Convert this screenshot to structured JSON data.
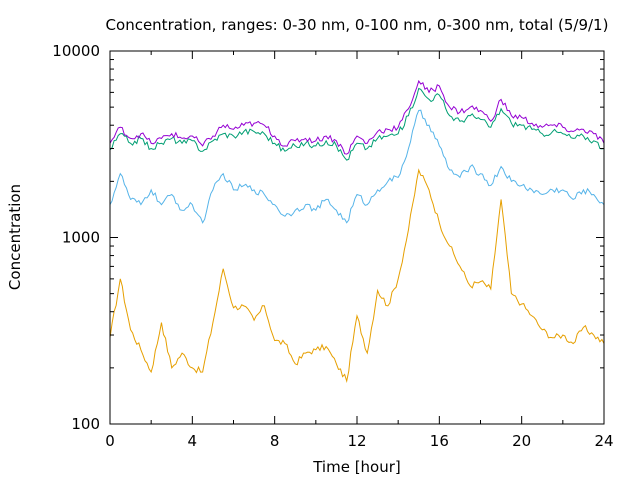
{
  "chart_data": {
    "type": "line",
    "title": "Concentration, ranges: 0-30 nm, 0-100 nm, 0-300 nm, total (5/9/1)",
    "xlabel": "Time [hour]",
    "ylabel": "Concentration",
    "xlim": [
      0,
      24
    ],
    "ylim": [
      100,
      10000
    ],
    "y_scale": "log",
    "grid": false,
    "legend": "none",
    "x_ticks": [
      0,
      4,
      8,
      12,
      16,
      20,
      24
    ],
    "x_tick_labels": [
      "0",
      "4",
      "8",
      "12",
      "16",
      "20",
      "24"
    ],
    "y_ticks": [
      100,
      1000,
      10000
    ],
    "y_tick_labels": [
      "100",
      "1000",
      "10000"
    ],
    "x": [
      0,
      0.5,
      1,
      1.5,
      2,
      2.5,
      3,
      3.5,
      4,
      4.5,
      5,
      5.5,
      6,
      6.5,
      7,
      7.5,
      8,
      8.5,
      9,
      9.5,
      10,
      10.5,
      11,
      11.5,
      12,
      12.5,
      13,
      13.5,
      14,
      14.5,
      15,
      15.5,
      16,
      16.5,
      17,
      17.5,
      18,
      18.5,
      19,
      19.5,
      20,
      20.5,
      21,
      21.5,
      22,
      22.5,
      23,
      23.5,
      24
    ],
    "series": [
      {
        "color": "#e69f00",
        "values": [
          290,
          600,
          320,
          250,
          190,
          350,
          200,
          240,
          200,
          190,
          350,
          680,
          420,
          430,
          360,
          430,
          280,
          270,
          210,
          240,
          250,
          260,
          210,
          170,
          380,
          240,
          520,
          430,
          600,
          1100,
          2300,
          1800,
          1200,
          900,
          700,
          550,
          580,
          530,
          1600,
          500,
          440,
          380,
          320,
          290,
          300,
          270,
          330,
          300,
          270
        ]
      },
      {
        "color": "#56b4e9",
        "values": [
          1500,
          2200,
          1600,
          1500,
          1800,
          1500,
          1700,
          1400,
          1500,
          1200,
          1800,
          2200,
          1800,
          1900,
          1800,
          1700,
          1500,
          1300,
          1400,
          1500,
          1400,
          1600,
          1400,
          1200,
          1700,
          1500,
          1800,
          2000,
          2100,
          3000,
          4800,
          4000,
          3100,
          2300,
          2100,
          2400,
          2200,
          1900,
          2400,
          2000,
          1900,
          1800,
          1700,
          1800,
          1800,
          1600,
          1800,
          1700,
          1500
        ]
      },
      {
        "color": "#009e73",
        "values": [
          2950,
          3600,
          3200,
          3400,
          3000,
          3200,
          3400,
          3200,
          3300,
          2900,
          3300,
          3600,
          3500,
          3700,
          3700,
          3600,
          3200,
          2900,
          3100,
          3200,
          3100,
          3300,
          3100,
          2600,
          3200,
          3000,
          3400,
          3500,
          3600,
          4500,
          6300,
          5500,
          5800,
          4500,
          4200,
          4500,
          4300,
          3900,
          4900,
          4100,
          4000,
          3800,
          3600,
          3700,
          3600,
          3400,
          3500,
          3300,
          3000
        ]
      },
      {
        "color": "#9400d3",
        "values": [
          3200,
          3900,
          3400,
          3600,
          3200,
          3400,
          3600,
          3400,
          3500,
          3100,
          3500,
          4000,
          3800,
          4000,
          4100,
          4000,
          3500,
          3100,
          3300,
          3400,
          3300,
          3500,
          3300,
          2800,
          3500,
          3200,
          3700,
          3800,
          3900,
          4900,
          6900,
          6000,
          6500,
          5000,
          4700,
          5000,
          4800,
          4200,
          5500,
          4500,
          4400,
          4100,
          3900,
          4000,
          3900,
          3700,
          3800,
          3600,
          3200
        ]
      }
    ]
  }
}
